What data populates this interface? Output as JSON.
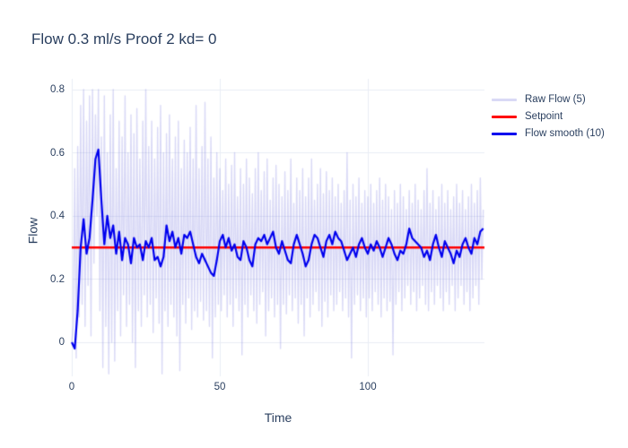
{
  "colors": {
    "text": "#2a3f5f",
    "grid": "#e9edf5",
    "background": "#ffffff",
    "raw": "rgba(80,80,215,0.22)",
    "setpoint": "#ff0000",
    "smooth": "#0000ee"
  },
  "chart_data": {
    "type": "line",
    "title": "Flow 0.3 ml/s Proof 2 kd= 0",
    "xlabel": "Time",
    "ylabel": "Flow",
    "xlim": [
      0,
      139.4
    ],
    "ylim": [
      -0.108,
      0.834
    ],
    "xticks": [
      0,
      50,
      100
    ],
    "yticks": [
      0,
      0.2,
      0.4,
      0.6,
      0.8
    ],
    "xtick_labels": [
      "0",
      "50",
      "100"
    ],
    "ytick_labels": [
      "0",
      "0.2",
      "0.4",
      "0.6",
      "0.8"
    ],
    "grid": true,
    "legend_position": "right",
    "setpoint_value": 0.3,
    "series": [
      {
        "name": "Raw Flow (5)",
        "color": "rgba(80,80,215,0.22)",
        "line_width": 1.4,
        "x_start": 0,
        "x_step": 0.5,
        "values": [
          0.0,
          0.05,
          0.55,
          -0.05,
          0.62,
          0.08,
          0.75,
          0.12,
          0.8,
          0.05,
          0.7,
          0.18,
          0.78,
          0.02,
          0.8,
          0.25,
          0.72,
          0.4,
          0.8,
          0.1,
          0.65,
          -0.08,
          0.78,
          0.05,
          0.6,
          -0.1,
          0.72,
          0.0,
          0.8,
          -0.06,
          0.55,
          0.1,
          0.7,
          0.02,
          0.65,
          0.15,
          0.78,
          0.05,
          0.6,
          0.12,
          0.72,
          0.0,
          0.66,
          -0.08,
          0.74,
          0.1,
          0.58,
          0.05,
          0.7,
          0.15,
          0.8,
          0.08,
          0.62,
          0.12,
          0.7,
          0.03,
          0.58,
          0.14,
          0.68,
          0.06,
          0.75,
          -0.1,
          0.6,
          0.1,
          0.66,
          0.05,
          0.72,
          0.12,
          0.58,
          0.08,
          0.65,
          0.02,
          0.7,
          -0.09,
          0.55,
          0.12,
          0.64,
          0.06,
          0.6,
          0.14,
          0.68,
          0.04,
          0.58,
          0.1,
          0.75,
          0.08,
          0.55,
          0.13,
          0.62,
          0.07,
          0.76,
          0.1,
          0.58,
          0.05,
          0.65,
          -0.05,
          0.52,
          0.08,
          0.6,
          0.12,
          0.55,
          0.1,
          0.48,
          0.15,
          0.58,
          0.08,
          0.5,
          0.12,
          0.56,
          0.05,
          0.6,
          0.14,
          0.46,
          0.1,
          0.55,
          -0.04,
          0.5,
          0.12,
          0.58,
          0.08,
          0.52,
          0.15,
          0.47,
          0.1,
          0.55,
          0.06,
          0.6,
          0.12,
          0.48,
          0.16,
          0.54,
          0.02,
          0.58,
          0.1,
          0.45,
          0.14,
          0.52,
          0.08,
          0.56,
          0.12,
          0.5,
          -0.02,
          0.46,
          0.12,
          0.54,
          0.09,
          0.48,
          0.15,
          0.58,
          0.1,
          0.44,
          0.14,
          0.52,
          0.06,
          0.48,
          0.12,
          0.55,
          0.02,
          0.46,
          0.14,
          0.52,
          0.08,
          0.58,
          0.12,
          0.45,
          0.16,
          0.5,
          0.1,
          0.55,
          0.05,
          0.47,
          0.13,
          0.54,
          0.08,
          0.48,
          0.15,
          0.52,
          0.1,
          0.46,
          0.12,
          0.5,
          0.16,
          0.44,
          0.1,
          0.48,
          0.14,
          0.6,
          0.08,
          0.45,
          -0.05,
          0.5,
          0.12,
          0.46,
          0.15,
          0.52,
          0.1,
          0.44,
          0.14,
          0.48,
          0.08,
          0.46,
          0.14,
          0.5,
          0.1,
          0.44,
          0.16,
          0.48,
          0.12,
          0.52,
          0.08,
          0.45,
          0.14,
          0.5,
          0.1,
          0.46,
          0.13,
          0.42,
          -0.04,
          0.48,
          0.12,
          0.44,
          0.16,
          0.5,
          0.1,
          0.46,
          0.14,
          0.42,
          0.18,
          0.48,
          0.12,
          0.44,
          0.16,
          0.5,
          0.1,
          0.45,
          0.14,
          0.42,
          0.18,
          0.48,
          0.12,
          0.55,
          0.1,
          0.44,
          0.16,
          0.48,
          0.12,
          0.42,
          0.18,
          0.46,
          0.14,
          0.5,
          0.1,
          0.44,
          0.16,
          0.48,
          0.12,
          0.42,
          0.18,
          0.46,
          0.1,
          0.5,
          0.14,
          0.44,
          0.18,
          0.48,
          0.12,
          0.42,
          0.16,
          0.46,
          0.1,
          0.5,
          0.14,
          0.44,
          0.18,
          0.48,
          0.12,
          0.52,
          0.2,
          0.42
        ]
      },
      {
        "name": "Setpoint",
        "color": "#ff0000",
        "line_width": 2.4,
        "x": [
          0,
          139.4
        ],
        "values": [
          0.3,
          0.3
        ]
      },
      {
        "name": "Flow smooth (10)",
        "color": "#0000ee",
        "line_width": 2.2,
        "x_start": 0,
        "x_step": 1,
        "values": [
          0.0,
          -0.02,
          0.1,
          0.3,
          0.39,
          0.28,
          0.33,
          0.45,
          0.58,
          0.61,
          0.45,
          0.31,
          0.4,
          0.33,
          0.37,
          0.28,
          0.35,
          0.26,
          0.33,
          0.31,
          0.25,
          0.33,
          0.3,
          0.31,
          0.26,
          0.32,
          0.3,
          0.33,
          0.26,
          0.27,
          0.24,
          0.27,
          0.37,
          0.32,
          0.35,
          0.3,
          0.33,
          0.28,
          0.34,
          0.33,
          0.35,
          0.31,
          0.27,
          0.25,
          0.28,
          0.26,
          0.24,
          0.22,
          0.21,
          0.26,
          0.32,
          0.34,
          0.3,
          0.33,
          0.29,
          0.31,
          0.27,
          0.26,
          0.32,
          0.3,
          0.26,
          0.24,
          0.31,
          0.33,
          0.32,
          0.34,
          0.31,
          0.33,
          0.35,
          0.3,
          0.28,
          0.32,
          0.29,
          0.26,
          0.25,
          0.31,
          0.34,
          0.31,
          0.28,
          0.24,
          0.26,
          0.31,
          0.34,
          0.33,
          0.3,
          0.27,
          0.32,
          0.34,
          0.31,
          0.35,
          0.33,
          0.32,
          0.29,
          0.26,
          0.28,
          0.3,
          0.27,
          0.31,
          0.33,
          0.3,
          0.28,
          0.31,
          0.29,
          0.32,
          0.3,
          0.27,
          0.3,
          0.33,
          0.31,
          0.28,
          0.26,
          0.29,
          0.28,
          0.31,
          0.36,
          0.33,
          0.32,
          0.31,
          0.3,
          0.27,
          0.29,
          0.26,
          0.31,
          0.34,
          0.3,
          0.27,
          0.32,
          0.3,
          0.28,
          0.25,
          0.29,
          0.27,
          0.31,
          0.33,
          0.3,
          0.28,
          0.33,
          0.31,
          0.35,
          0.36
        ]
      }
    ]
  }
}
